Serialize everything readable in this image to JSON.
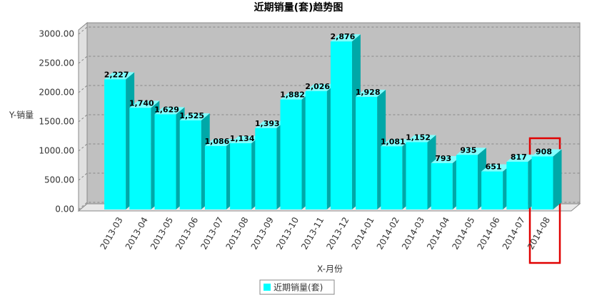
{
  "chart_data": {
    "type": "bar",
    "title": "近期销量(套)趋势图",
    "x_label": "X-月份",
    "y_label": "Y-销量",
    "categories": [
      "2013-03",
      "2013-04",
      "2013-05",
      "2013-06",
      "2013-07",
      "2013-08",
      "2013-09",
      "2013-10",
      "2013-11",
      "2013-12",
      "2014-01",
      "2014-02",
      "2014-03",
      "2014-04",
      "2014-05",
      "2014-06",
      "2014-07",
      "2014-08"
    ],
    "series": [
      {
        "name": "近期销量(套)",
        "color": "#00ffff",
        "values": [
          2227,
          1740,
          1629,
          1525,
          1086,
          1134,
          1393,
          1882,
          2026,
          2876,
          1928,
          1081,
          1152,
          793,
          935,
          651,
          817,
          908
        ],
        "value_labels": [
          "2,227",
          "1,740",
          "1,629",
          "1,525",
          "1,086",
          "1,134",
          "1,393",
          "1,882",
          "2,026",
          "2,876",
          "1,928",
          "1,081",
          "1,152",
          "793",
          "935",
          "651",
          "817",
          "908"
        ]
      }
    ],
    "ylim": [
      0,
      3200
    ],
    "yticks": [
      {
        "value": 0,
        "label": "0.00"
      },
      {
        "value": 500,
        "label": "500.00"
      },
      {
        "value": 1000,
        "label": "1000.00"
      },
      {
        "value": 1500,
        "label": "1500.00"
      },
      {
        "value": 2000,
        "label": "2000.00"
      },
      {
        "value": 2500,
        "label": "2500.00"
      },
      {
        "value": 3000,
        "label": "3000.00"
      }
    ],
    "grid": true
  }
}
